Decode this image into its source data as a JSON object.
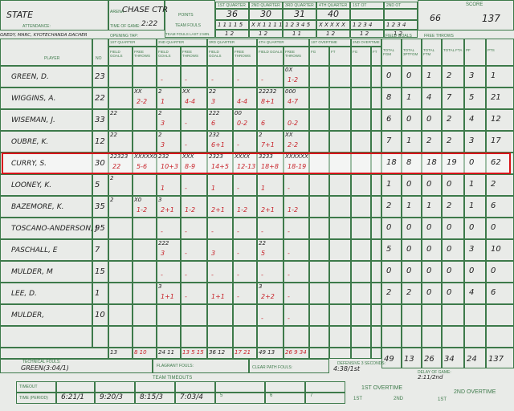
{
  "header": {
    "team": "STATE",
    "arena_label": "ARENA",
    "arena": "CHASE CTR",
    "attendance_label": "ATTENDANCE:",
    "time_label": "TIME OF GAME:",
    "time": "2:22",
    "officials": "GREDY, MARC, KYOTECHANDA DACHER",
    "opening_tap_label": "OPENING TAP:",
    "points_label": "POINTS",
    "team_fouls_label": "TEAM FOULS",
    "last2_label": "TEAM FOULS LAST 2 MIN.",
    "periods": [
      "1ST QUARTER",
      "2ND QUARTER",
      "3RD QUARTER",
      "4TH QUARTER",
      "1ST OT",
      "2ND OT"
    ],
    "points": [
      "36",
      "30",
      "31",
      "40",
      "",
      ""
    ],
    "fouls": [
      "1 1 1 1 5",
      "X X 1 1 1 1",
      "1 2 3 4 5",
      "X X X X X",
      "1 2 3 4",
      "1 2 3 4"
    ],
    "last2": [
      "1 2",
      "1 2",
      "1 1",
      "1 2",
      "1 2",
      "1 2"
    ],
    "score_label": "SCORE",
    "score_half": "66",
    "score_final": "137"
  },
  "columns": {
    "player": "PLAYER",
    "no": "NO",
    "quarters": [
      "1ST QUARTER",
      "2ND QUARTER",
      "3RD QUARTER",
      "4TH QUARTER",
      "1ST OVERTIME",
      "2ND OVERTIME"
    ],
    "fg": "FIELD GOALS",
    "ft": "FREE THROWS",
    "fgs": "FG",
    "fts": "FT",
    "field_goals": "FIELD GOALS",
    "free_throws": "FREE THROWS",
    "totals": [
      "TOTAL FGM",
      "TOTAL 3PTFGM",
      "TOTAL FTM",
      "TOTAL FTA",
      "PF",
      "PTS"
    ]
  },
  "players": [
    {
      "name": "GREEN, D.",
      "no": "23",
      "cells": [
        [
          "",
          ""
        ],
        [
          "",
          ""
        ],
        [
          "",
          "-"
        ],
        [
          "",
          "-"
        ],
        [
          "",
          "-"
        ],
        [
          "",
          "-"
        ],
        [
          "",
          "-"
        ],
        [
          "0X",
          "1-2"
        ]
      ],
      "totals": [
        "0",
        "0",
        "1",
        "2",
        "3",
        "1"
      ]
    },
    {
      "name": "WIGGINS, A.",
      "no": "22",
      "cells": [
        [
          "",
          ""
        ],
        [
          "XX",
          "2-2"
        ],
        [
          "2",
          "1"
        ],
        [
          "XX",
          "4-4"
        ],
        [
          "22",
          "3"
        ],
        [
          "",
          "4-4"
        ],
        [
          "22232",
          "8+1"
        ],
        [
          "000",
          "4-7"
        ]
      ],
      "totals": [
        "8",
        "1",
        "4",
        "7",
        "5",
        "21"
      ]
    },
    {
      "name": "WISEMAN, J.",
      "no": "33",
      "cells": [
        [
          "22",
          ""
        ],
        [
          "",
          ""
        ],
        [
          "2",
          "3"
        ],
        [
          "",
          "-"
        ],
        [
          "222",
          "6"
        ],
        [
          "00",
          "0-2"
        ],
        [
          "",
          "6"
        ],
        [
          "",
          "0-2"
        ]
      ],
      "totals": [
        "6",
        "0",
        "0",
        "2",
        "4",
        "12"
      ]
    },
    {
      "name": "OUBRE, K.",
      "no": "12",
      "cells": [
        [
          "22",
          ""
        ],
        [
          "",
          ""
        ],
        [
          "2",
          "3"
        ],
        [
          "",
          "-"
        ],
        [
          "232",
          "6+1"
        ],
        [
          "",
          "-"
        ],
        [
          "2",
          "7+1"
        ],
        [
          "XX",
          "2-2"
        ]
      ],
      "totals": [
        "7",
        "1",
        "2",
        "2",
        "3",
        "17"
      ]
    },
    {
      "name": "CURRY, S.",
      "no": "30",
      "cells": [
        [
          "22323",
          "22"
        ],
        [
          "XXXXX0",
          "5-6"
        ],
        [
          "232",
          "10+3"
        ],
        [
          "XXX",
          "8-9"
        ],
        [
          "2323",
          "14+5"
        ],
        [
          "XXXX",
          "12-13"
        ],
        [
          "3233",
          "18+8"
        ],
        [
          "XXXXXX",
          "18-19"
        ]
      ],
      "totals": [
        "18",
        "8",
        "18",
        "19",
        "0",
        "62"
      ]
    },
    {
      "name": "LOONEY, K.",
      "no": "5",
      "cells": [
        [
          "2",
          ""
        ],
        [
          "",
          ""
        ],
        [
          "",
          "1"
        ],
        [
          "",
          "-"
        ],
        [
          "",
          "1"
        ],
        [
          "",
          "-"
        ],
        [
          "",
          "1"
        ],
        [
          "",
          "-"
        ]
      ],
      "totals": [
        "1",
        "0",
        "0",
        "0",
        "1",
        "2"
      ]
    },
    {
      "name": "BAZEMORE, K.",
      "no": "35",
      "cells": [
        [
          "2",
          ""
        ],
        [
          "X0",
          "1-2"
        ],
        [
          "3",
          "2+1"
        ],
        [
          "",
          "1-2"
        ],
        [
          "",
          "2+1"
        ],
        [
          "",
          "1-2"
        ],
        [
          "",
          "2+1"
        ],
        [
          "",
          "1-2"
        ]
      ],
      "totals": [
        "2",
        "1",
        "1",
        "2",
        "1",
        "6"
      ]
    },
    {
      "name": "TOSCANO-ANDERSON, J",
      "no": "95",
      "cells": [
        [
          "",
          ""
        ],
        [
          "",
          ""
        ],
        [
          "",
          "-"
        ],
        [
          "",
          "-"
        ],
        [
          "",
          "-"
        ],
        [
          "",
          "-"
        ],
        [
          "",
          "-"
        ],
        [
          "",
          "-"
        ]
      ],
      "totals": [
        "0",
        "0",
        "0",
        "0",
        "0",
        "0"
      ]
    },
    {
      "name": "PASCHALL, E",
      "no": "7",
      "cells": [
        [
          "",
          ""
        ],
        [
          "",
          ""
        ],
        [
          "222",
          "3"
        ],
        [
          "",
          "-"
        ],
        [
          "",
          "3"
        ],
        [
          "",
          "-"
        ],
        [
          "22",
          "5"
        ],
        [
          "",
          "-"
        ]
      ],
      "totals": [
        "5",
        "0",
        "0",
        "0",
        "3",
        "10"
      ]
    },
    {
      "name": "MULDER, M",
      "no": "15",
      "cells": [
        [
          "",
          ""
        ],
        [
          "",
          ""
        ],
        [
          "",
          "-"
        ],
        [
          "",
          "-"
        ],
        [
          "",
          "-"
        ],
        [
          "",
          "-"
        ],
        [
          "",
          "-"
        ],
        [
          "",
          "-"
        ]
      ],
      "totals": [
        "0",
        "0",
        "0",
        "0",
        "0",
        "0"
      ]
    },
    {
      "name": "LEE, D.",
      "no": "1",
      "cells": [
        [
          "",
          ""
        ],
        [
          "",
          ""
        ],
        [
          "3",
          "1+1"
        ],
        [
          "",
          "-"
        ],
        [
          "",
          "1+1"
        ],
        [
          "",
          "-"
        ],
        [
          "3",
          "2+2"
        ],
        [
          "",
          "-"
        ]
      ],
      "totals": [
        "2",
        "2",
        "0",
        "0",
        "4",
        "6"
      ]
    },
    {
      "name": "MULDER,",
      "no": "10",
      "cells": [
        [
          "",
          ""
        ],
        [
          "",
          ""
        ],
        [
          "",
          ""
        ],
        [
          "",
          ""
        ],
        [
          "",
          ""
        ],
        [
          "",
          ""
        ],
        [
          "",
          "-"
        ],
        [
          "",
          "-"
        ]
      ],
      "totals": [
        "",
        "",
        "",
        "",
        "",
        ""
      ]
    },
    {
      "name": "",
      "no": "",
      "cells": [
        [
          "",
          ""
        ],
        [
          "",
          ""
        ],
        [
          "",
          ""
        ],
        [
          "",
          ""
        ],
        [
          "",
          ""
        ],
        [
          "",
          ""
        ],
        [
          "",
          ""
        ],
        [
          "",
          ""
        ]
      ],
      "totals": [
        "",
        "",
        "",
        "",
        "",
        ""
      ]
    }
  ],
  "team_totals": {
    "quarters": [
      "13",
      "8 10",
      "24 11",
      "13 5 15",
      "36 12",
      "17 21",
      "49 13",
      "26 9 34"
    ],
    "totals": [
      "49",
      "13",
      "26",
      "34",
      "24",
      "137"
    ]
  },
  "footer": {
    "technical_label": "TECHNICAL FOULS:",
    "technical": "GREEN(3:04/1)",
    "flagrant_label": "FLAGRANT FOULS:",
    "clear_path_label": "CLEAR PATH FOULS:",
    "def3_label": "DEFENSIVE 3 SECONDS:",
    "def3": "4:38/1st",
    "delay_label": "DELAY OF GAME:",
    "delay": "2:11/2nd",
    "team_timeouts_label": "TEAM TIMEOUTS",
    "timeout_label": "TIMEOUT",
    "time_period_label": "TIME (PERIOD)",
    "timeouts": [
      "6:21/1",
      "9:20/3",
      "8:15/3",
      "7:03/4",
      "5",
      "6",
      "7"
    ],
    "ot1_label": "1ST OVERTIME",
    "ot2_label": "2ND OVERTIME",
    "first": "1ST",
    "second": "2ND"
  },
  "colors": {
    "grid": "#3d7a4a",
    "ink_red": "#c8232a",
    "highlight": "#d8141a",
    "paper": "#e9ebe8"
  }
}
